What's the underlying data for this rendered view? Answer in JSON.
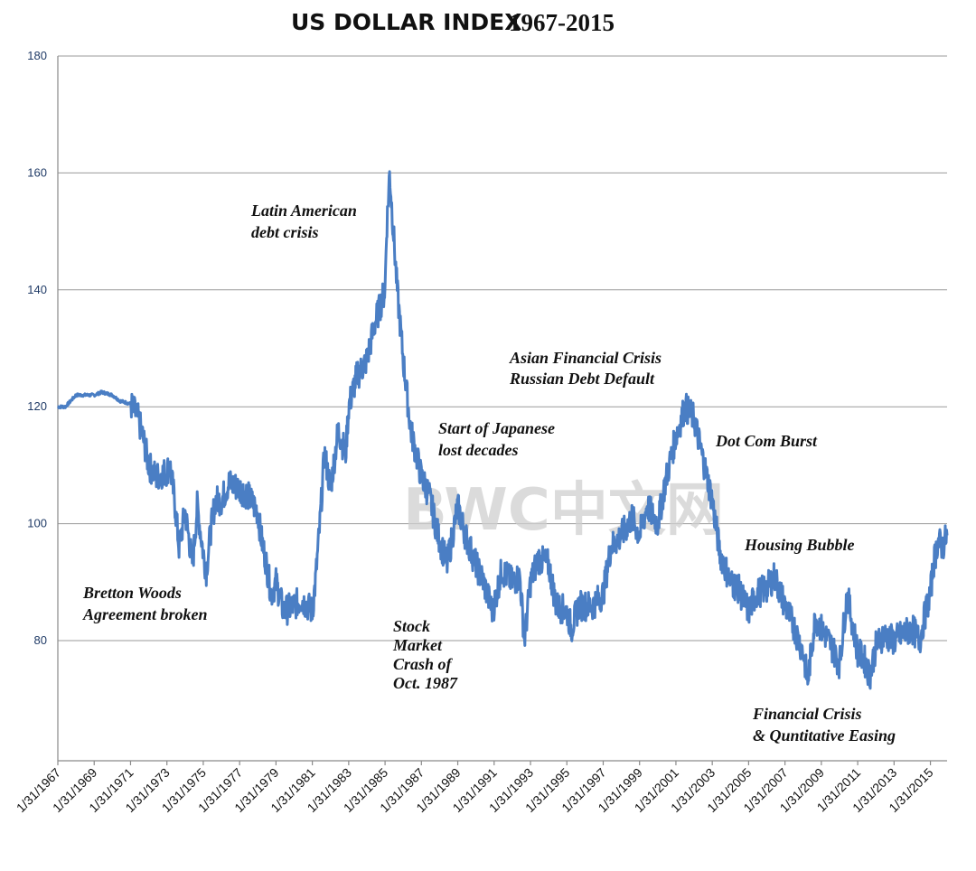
{
  "chart_data": {
    "type": "line",
    "title": "US DOLLAR INDEX",
    "title_years": "1967-2015",
    "xlabel": "",
    "ylabel": "",
    "ylim": [
      60,
      180
    ],
    "y_ticks": [
      80,
      100,
      120,
      140,
      160,
      180
    ],
    "x_tick_labels": [
      "1/31/1967",
      "1/31/1969",
      "1/31/1971",
      "1/31/1973",
      "1/31/1975",
      "1/31/1977",
      "1/31/1979",
      "1/31/1981",
      "1/31/1983",
      "1/31/1985",
      "1/31/1987",
      "1/31/1989",
      "1/31/1991",
      "1/31/1993",
      "1/31/1995",
      "1/31/1997",
      "1/31/1999",
      "1/31/2001",
      "1/31/2003",
      "1/31/2005",
      "1/31/2007",
      "1/31/2009",
      "1/31/2011",
      "1/31/2013",
      "1/31/2015"
    ],
    "grid": true,
    "legend": "none",
    "line_color": "#4a7ec4",
    "series": [
      {
        "x": [
          "1967-01",
          "1967-06",
          "1968-01",
          "1968-06",
          "1969-01",
          "1969-06",
          "1970-01",
          "1970-06",
          "1971-01",
          "1971-06",
          "1971-09",
          "1972-01",
          "1972-06",
          "1973-01",
          "1973-03",
          "1973-06",
          "1973-09",
          "1974-01",
          "1974-06",
          "1974-09",
          "1975-01",
          "1975-03",
          "1975-06",
          "1975-09",
          "1976-01",
          "1976-06",
          "1977-01",
          "1977-06",
          "1978-01",
          "1978-03",
          "1978-06",
          "1978-10",
          "1979-01",
          "1979-06",
          "1980-01",
          "1980-06",
          "1981-01",
          "1981-03",
          "1981-06",
          "1981-09",
          "1982-01",
          "1982-06",
          "1982-11",
          "1983-01",
          "1983-06",
          "1984-01",
          "1984-06",
          "1985-01",
          "1985-02",
          "1985-04",
          "1985-06",
          "1985-09",
          "1986-01",
          "1986-06",
          "1987-01",
          "1987-06",
          "1987-12",
          "1988-06",
          "1989-01",
          "1989-06",
          "1990-01",
          "1990-06",
          "1990-12",
          "1991-06",
          "1992-01",
          "1992-06",
          "1992-09",
          "1993-01",
          "1993-06",
          "1994-01",
          "1994-06",
          "1995-01",
          "1995-04",
          "1995-09",
          "1996-06",
          "1997-01",
          "1997-06",
          "1998-01",
          "1998-08",
          "1999-01",
          "1999-06",
          "2000-01",
          "2000-06",
          "2001-01",
          "2001-07",
          "2002-01",
          "2002-06",
          "2003-01",
          "2003-06",
          "2004-01",
          "2004-06",
          "2005-01",
          "2005-06",
          "2006-01",
          "2006-06",
          "2007-01",
          "2007-06",
          "2008-01",
          "2008-04",
          "2008-09",
          "2009-01",
          "2009-06",
          "2010-01",
          "2010-06",
          "2011-01",
          "2011-05",
          "2011-09",
          "2012-01",
          "2012-06",
          "2013-01",
          "2013-06",
          "2014-01",
          "2014-06",
          "2014-09",
          "2015-01",
          "2015-03",
          "2015-06",
          "2015-09",
          "2015-12"
        ],
        "values": [
          120,
          120,
          122,
          122,
          122,
          122.5,
          122,
          121,
          120.5,
          118,
          115,
          110,
          108,
          109,
          110,
          104,
          96,
          102,
          93,
          103,
          95,
          92,
          99,
          104,
          104,
          107,
          106,
          105,
          102,
          98,
          94,
          88,
          90,
          85,
          86,
          87,
          85,
          90,
          100,
          112,
          106,
          116,
          112,
          120,
          125,
          128,
          134,
          140,
          150,
          160,
          152,
          140,
          128,
          116,
          108,
          105,
          98,
          93,
          103,
          98,
          93,
          90,
          85,
          92,
          90,
          91,
          80,
          90,
          94,
          93,
          86,
          85,
          82,
          86,
          86,
          88,
          96,
          98,
          101,
          98,
          103,
          100,
          107,
          115,
          120,
          118,
          112,
          104,
          95,
          90,
          89,
          85,
          88,
          89,
          91,
          86,
          83,
          78,
          73,
          84,
          82,
          80,
          76,
          88,
          78,
          77,
          74,
          79,
          81,
          80,
          81,
          82,
          80,
          84,
          88,
          93,
          97,
          96,
          98
        ]
      }
    ],
    "annotations": [
      {
        "lines": [
          "Latin American",
          "debt crisis"
        ]
      },
      {
        "lines": [
          "Bretton Woods",
          "Agreement broken"
        ]
      },
      {
        "lines": [
          "Stock",
          "Market",
          "Crash of",
          "Oct. 1987"
        ]
      },
      {
        "lines": [
          "Start of Japanese",
          "lost decades"
        ]
      },
      {
        "lines": [
          "Asian Financial Crisis",
          "Russian Debt Default"
        ]
      },
      {
        "lines": [
          "Dot Com Burst"
        ]
      },
      {
        "lines": [
          "Housing Bubble"
        ]
      },
      {
        "lines": [
          "Financial Crisis",
          "& Quntitative Easing"
        ]
      }
    ],
    "watermark": "BWC中文网"
  }
}
